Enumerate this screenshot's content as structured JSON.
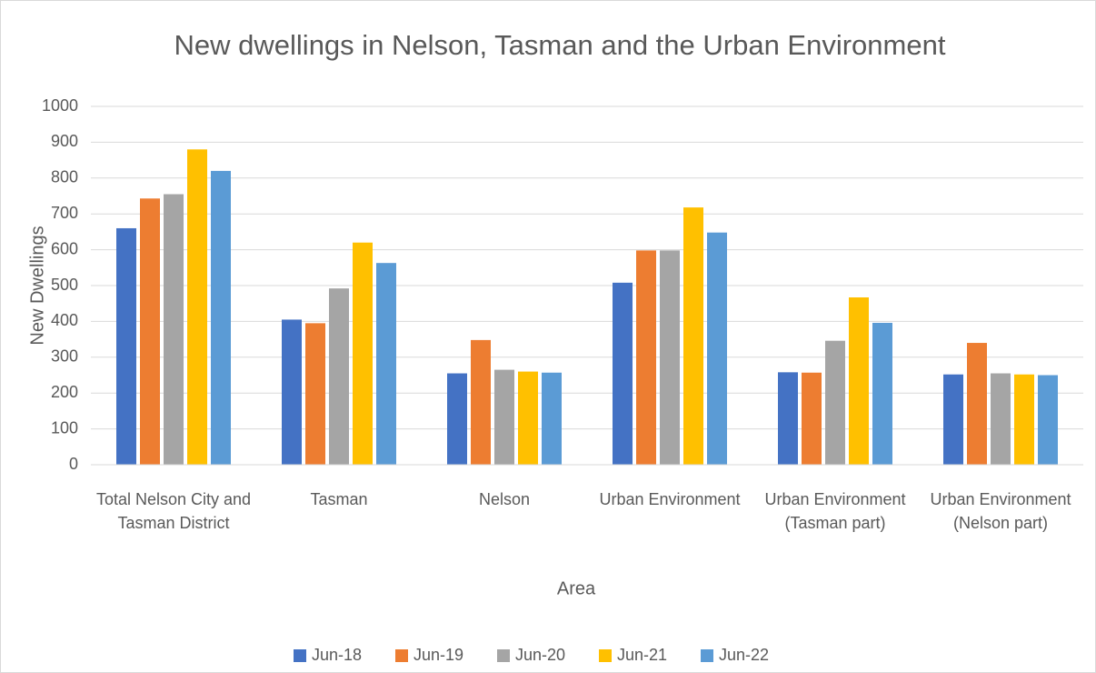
{
  "chart_data": {
    "type": "bar",
    "title": "New dwellings in Nelson, Tasman and the Urban Environment",
    "x_label": "Area",
    "y_label": "New Dwellings",
    "categories": [
      "Total Nelson City and Tasman District",
      "Tasman",
      "Nelson",
      "Urban Environment",
      "Urban Environment (Tasman part)",
      "Urban Environment (Nelson part)"
    ],
    "series": [
      {
        "name": "Jun-18",
        "color": "#4472c4",
        "values": [
          660,
          405,
          255,
          508,
          258,
          252
        ]
      },
      {
        "name": "Jun-19",
        "color": "#ed7d31",
        "values": [
          743,
          395,
          348,
          598,
          257,
          340
        ]
      },
      {
        "name": "Jun-20",
        "color": "#a5a5a5",
        "values": [
          755,
          492,
          265,
          598,
          346,
          255
        ]
      },
      {
        "name": "Jun-21",
        "color": "#ffc000",
        "values": [
          880,
          620,
          260,
          718,
          467,
          252
        ]
      },
      {
        "name": "Jun-22",
        "color": "#5b9bd5",
        "values": [
          820,
          563,
          257,
          648,
          396,
          250
        ]
      }
    ],
    "ylim": [
      0,
      1000
    ],
    "yticks": [
      0,
      100,
      200,
      300,
      400,
      500,
      600,
      700,
      800,
      900,
      1000
    ],
    "grid": true,
    "legend": "bottom"
  }
}
